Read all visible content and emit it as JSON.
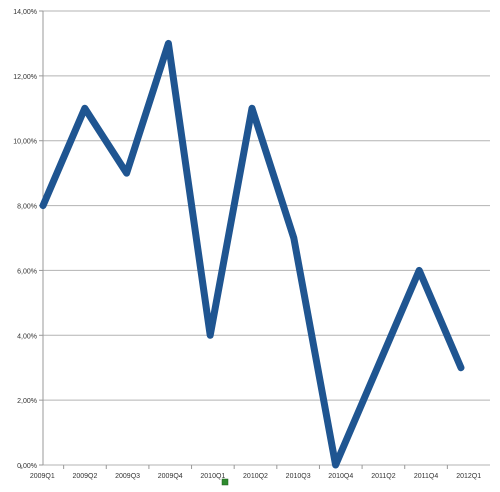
{
  "chart_data": {
    "type": "line",
    "title": "",
    "xlabel": "",
    "ylabel": "",
    "categories": [
      "2009Q1",
      "2009Q2",
      "2009Q3",
      "2009Q4",
      "2010Q1",
      "2010Q2",
      "2010Q3",
      "2010Q4",
      "2011Q2",
      "2011Q4",
      "2012Q1"
    ],
    "x": [
      0,
      1,
      2,
      3,
      4,
      5,
      6,
      7,
      8,
      9,
      10
    ],
    "series": [
      {
        "values": [
          8,
          11,
          9,
          13,
          4,
          11,
          7,
          0,
          3,
          6,
          3
        ]
      }
    ],
    "ylim": [
      0,
      14
    ],
    "ytick_values": [
      0,
      2,
      4,
      6,
      8,
      10,
      12,
      14
    ],
    "ytick_labels": [
      "0,00%",
      "2,00%",
      "4,00%",
      "6,00%",
      "8,00%",
      "10,00%",
      "12,00%",
      "14,00%"
    ],
    "grid": "horizontal",
    "legend": "bottom-center",
    "colors": {
      "line": "#1f5591",
      "grid": "#b3b3b3",
      "axis": "#999999",
      "legend_marker": "#2e8b2e"
    }
  }
}
